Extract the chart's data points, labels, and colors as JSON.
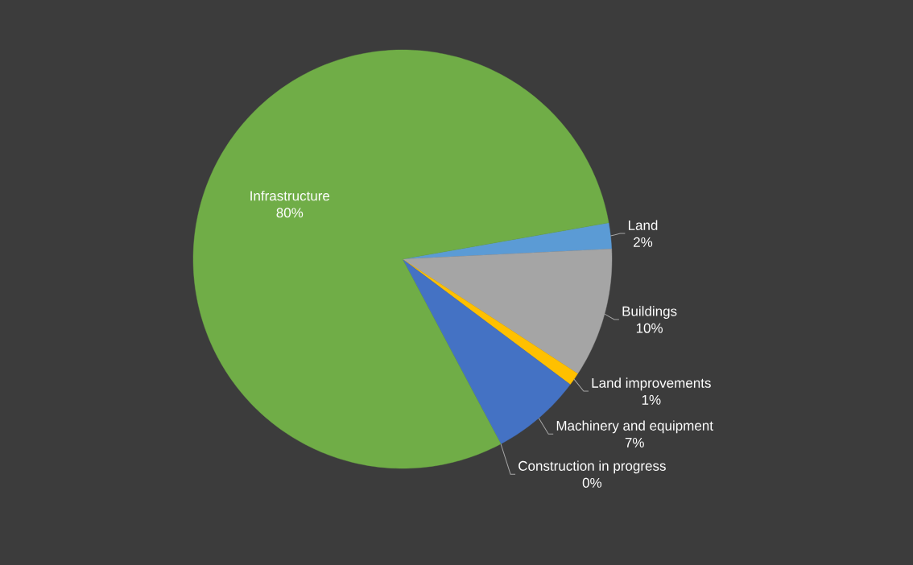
{
  "chart_data": {
    "type": "pie",
    "categories": [
      "Land",
      "Buildings",
      "Land improvements",
      "Machinery and equipment",
      "Construction in progress",
      "Infrastructure"
    ],
    "values": [
      2,
      10,
      1,
      7,
      0,
      80
    ],
    "colors": [
      "#5b9bd5",
      "#a5a5a5",
      "#ffc000",
      "#4472c4",
      "#264478",
      "#70ad47"
    ],
    "value_labels": [
      "2%",
      "10%",
      "1%",
      "7%",
      "0%",
      "80%"
    ]
  }
}
